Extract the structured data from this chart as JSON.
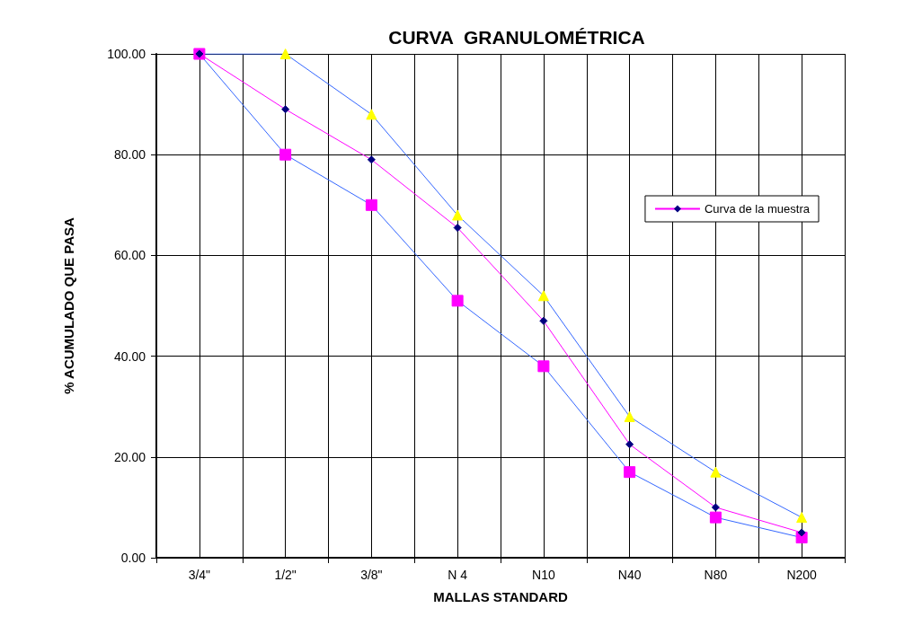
{
  "chart_data": {
    "type": "line",
    "title": "CURVA  GRANULOMÉTRICA",
    "xlabel": "MALLAS STANDARD",
    "ylabel": "% ACUMULADO QUE PASA",
    "categories": [
      "3/4\"",
      "1/2\"",
      "3/8\"",
      "N 4",
      "N10",
      "N40",
      "N80",
      "N200"
    ],
    "series": [
      {
        "color": "#3366ff",
        "marker": "triangle",
        "colors": [
          "#ffff00",
          "#ffff00",
          "#ffff00",
          "#ffff00",
          "#ffff00",
          "#ffff00",
          "#ffff00",
          "#ffff00"
        ],
        "values": [
          100,
          100,
          88,
          68,
          52,
          28,
          17,
          8
        ]
      },
      {
        "color": "#3366ff",
        "marker": "square",
        "colors": [
          "#ff00ff",
          "#ff00ff",
          "#ff00ff",
          "#ff00ff",
          "#ff00ff",
          "#ff00ff",
          "#ff00ff",
          "#ff00ff"
        ],
        "values": [
          100,
          80,
          70,
          51,
          38,
          17,
          8,
          4
        ]
      },
      {
        "name": "Curva de la muestra",
        "color": "#ff00ff",
        "marker": "diamond",
        "colors": [
          "#000080",
          "#000080",
          "#000080",
          "#000080",
          "#000080",
          "#000080",
          "#000080",
          "#000080"
        ],
        "values": [
          100,
          89,
          79,
          65.5,
          47,
          22.5,
          10,
          5
        ]
      }
    ],
    "ylim": [
      0,
      100
    ],
    "yticks": [
      {
        "value": 0,
        "label": "0.00"
      },
      {
        "value": 20,
        "label": "20.00"
      },
      {
        "value": 40,
        "label": "40.00"
      },
      {
        "value": 60,
        "label": "60.00"
      },
      {
        "value": 80,
        "label": "80.00"
      },
      {
        "value": 100,
        "label": "100.00"
      }
    ],
    "grid": true,
    "legend": "right",
    "line_style": "solid"
  }
}
